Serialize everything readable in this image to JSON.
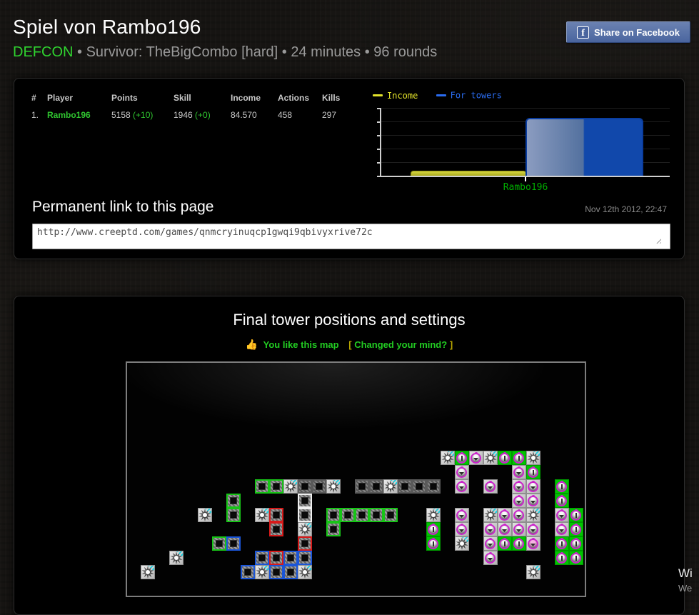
{
  "header": {
    "title": "Spiel von Rambo196",
    "share_button": "Share on Facebook",
    "facebook_f": "f",
    "game_mode": "DEFCON",
    "subtitle_rest": "• Survivor: TheBigCombo [hard] • 24 minutes • 96 rounds"
  },
  "stats": {
    "headers": [
      "#",
      "Player",
      "Points",
      "Skill",
      "Income",
      "Actions",
      "Kills"
    ],
    "row": {
      "rank": "1.",
      "player": "Rambo196",
      "points": "5158",
      "points_delta": "(+10)",
      "skill": "1946",
      "skill_delta": "(+0)",
      "income": "84.570",
      "actions": "458",
      "kills": "297"
    }
  },
  "chart_data": {
    "type": "bar",
    "title": "",
    "categories": [
      "Rambo196"
    ],
    "series": [
      {
        "name": "Income",
        "color": "#e2e22a",
        "values_relative": [
          0.06
        ]
      },
      {
        "name": "For towers",
        "color": "#1148ab",
        "values_relative": [
          0.83
        ]
      }
    ],
    "xlabel": "",
    "ylabel": "",
    "y_axis": {
      "tick_count": 6,
      "numeric_labels_visible": false
    },
    "grid": true,
    "legend_position": "top-left",
    "category_label_color": "#00ad00",
    "note": "relative bar heights as fraction of y-axis; table income value is 84.570"
  },
  "permalink": {
    "heading": "Permanent link to this page",
    "date": "Nov 12th 2012, 22:47",
    "url": "http://www.creeptd.com/games/qnmcryinuqcp1gwqi9qbivyxrive72c"
  },
  "map_section": {
    "title": "Final tower positions and settings",
    "like_icon": "👍",
    "like_text": "You like this map",
    "change_bracket_open": "[",
    "change_text": " Changed your mind? ",
    "change_bracket_close": "]"
  },
  "map": {
    "tower_types": {
      "sp": "splash-tower",
      "y": "square-tower-gray",
      "w": "square-tower-white",
      "g": "square-tower-green",
      "b": "square-tower-blue",
      "r": "square-tower-red",
      "m": "creep-tower-magenta-silver",
      "n": "creep-tower-magenta-green",
      "p": "creep-tower-magenta-pink"
    },
    "towers": [
      [
        21,
        0,
        "sp"
      ],
      [
        22,
        0,
        "n"
      ],
      [
        23,
        0,
        "m"
      ],
      [
        24,
        0,
        "sp"
      ],
      [
        25,
        0,
        "n"
      ],
      [
        26,
        0,
        "n"
      ],
      [
        27,
        0,
        "sp"
      ],
      [
        22,
        1,
        "m"
      ],
      [
        26,
        1,
        "m"
      ],
      [
        27,
        1,
        "n"
      ],
      [
        8,
        2,
        "g"
      ],
      [
        9,
        2,
        "g"
      ],
      [
        10,
        2,
        "sp"
      ],
      [
        11,
        2,
        "y"
      ],
      [
        12,
        2,
        "y"
      ],
      [
        13,
        2,
        "sp"
      ],
      [
        15,
        2,
        "y"
      ],
      [
        16,
        2,
        "y"
      ],
      [
        17,
        2,
        "sp"
      ],
      [
        18,
        2,
        "y"
      ],
      [
        19,
        2,
        "y"
      ],
      [
        20,
        2,
        "y"
      ],
      [
        22,
        2,
        "m"
      ],
      [
        24,
        2,
        "m"
      ],
      [
        26,
        2,
        "m"
      ],
      [
        27,
        2,
        "m"
      ],
      [
        29,
        2,
        "n"
      ],
      [
        6,
        3,
        "g"
      ],
      [
        11,
        3,
        "w"
      ],
      [
        26,
        3,
        "m"
      ],
      [
        27,
        3,
        "m"
      ],
      [
        29,
        3,
        "n"
      ],
      [
        4,
        4,
        "sp"
      ],
      [
        6,
        4,
        "g"
      ],
      [
        8,
        4,
        "sp"
      ],
      [
        9,
        4,
        "r"
      ],
      [
        11,
        4,
        "w"
      ],
      [
        13,
        4,
        "g"
      ],
      [
        14,
        4,
        "g"
      ],
      [
        15,
        4,
        "g"
      ],
      [
        16,
        4,
        "g"
      ],
      [
        17,
        4,
        "g"
      ],
      [
        20,
        4,
        "sp"
      ],
      [
        22,
        4,
        "m"
      ],
      [
        24,
        4,
        "sp"
      ],
      [
        25,
        4,
        "m"
      ],
      [
        26,
        4,
        "m"
      ],
      [
        27,
        4,
        "sp"
      ],
      [
        29,
        4,
        "m"
      ],
      [
        30,
        4,
        "n"
      ],
      [
        9,
        5,
        "r"
      ],
      [
        11,
        5,
        "sp"
      ],
      [
        13,
        5,
        "g"
      ],
      [
        20,
        5,
        "n"
      ],
      [
        22,
        5,
        "m"
      ],
      [
        24,
        5,
        "m"
      ],
      [
        25,
        5,
        "m"
      ],
      [
        26,
        5,
        "m"
      ],
      [
        27,
        5,
        "m"
      ],
      [
        29,
        5,
        "m"
      ],
      [
        30,
        5,
        "n"
      ],
      [
        5,
        6,
        "g"
      ],
      [
        6,
        6,
        "b"
      ],
      [
        11,
        6,
        "r"
      ],
      [
        20,
        6,
        "n"
      ],
      [
        22,
        6,
        "sp"
      ],
      [
        24,
        6,
        "m"
      ],
      [
        25,
        6,
        "n"
      ],
      [
        26,
        6,
        "n"
      ],
      [
        27,
        6,
        "p"
      ],
      [
        29,
        6,
        "n"
      ],
      [
        30,
        6,
        "n"
      ],
      [
        2,
        7,
        "sp"
      ],
      [
        8,
        7,
        "b"
      ],
      [
        9,
        7,
        "r"
      ],
      [
        10,
        7,
        "b"
      ],
      [
        11,
        7,
        "b"
      ],
      [
        24,
        7,
        "m"
      ],
      [
        29,
        7,
        "n"
      ],
      [
        30,
        7,
        "n"
      ],
      [
        0,
        8,
        "sp"
      ],
      [
        7,
        8,
        "b"
      ],
      [
        8,
        8,
        "sp"
      ],
      [
        9,
        8,
        "b"
      ],
      [
        10,
        8,
        "b"
      ],
      [
        11,
        8,
        "sp"
      ],
      [
        27,
        8,
        "sp"
      ]
    ]
  },
  "overlay": {
    "line1": "Wi",
    "line2": "We"
  }
}
